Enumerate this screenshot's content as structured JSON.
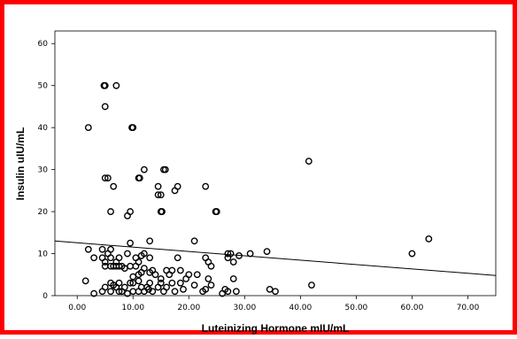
{
  "colors": {
    "border": "#ff0000",
    "point": "#000000",
    "fit_line": "#000000"
  },
  "chart_data": {
    "type": "scatter",
    "title": "",
    "xlabel": "Luteinizing Hormone mIU/mL",
    "ylabel": "Insulin uIU/mL",
    "xlim": [
      -4,
      75
    ],
    "ylim": [
      0,
      63
    ],
    "x_ticks": [
      0,
      10,
      20,
      30,
      40,
      50,
      60,
      70
    ],
    "x_tick_labels": [
      "0.00",
      "10.00",
      "20.00",
      "30.00",
      "40.00",
      "50.00",
      "60.00",
      "70.00"
    ],
    "y_ticks": [
      0,
      10,
      20,
      30,
      40,
      50,
      60
    ],
    "y_tick_labels": [
      "0",
      "10",
      "20",
      "30",
      "40",
      "50",
      "60"
    ],
    "grid": false,
    "fit_line": {
      "x": [
        -4,
        75
      ],
      "y": [
        13.0,
        4.8
      ]
    },
    "points": [
      [
        2.0,
        40.0
      ],
      [
        4.8,
        50.0
      ],
      [
        5.0,
        50.0
      ],
      [
        7.0,
        50.0
      ],
      [
        5.0,
        45.0
      ],
      [
        10.0,
        40.0
      ],
      [
        9.8,
        40.0
      ],
      [
        41.5,
        32.0
      ],
      [
        12.0,
        30.0
      ],
      [
        15.5,
        30.0
      ],
      [
        15.8,
        30.0
      ],
      [
        5.0,
        28.0
      ],
      [
        5.5,
        28.0
      ],
      [
        11.0,
        28.0
      ],
      [
        11.2,
        28.0
      ],
      [
        6.5,
        26.0
      ],
      [
        14.5,
        26.0
      ],
      [
        18.0,
        26.0
      ],
      [
        23.0,
        26.0
      ],
      [
        17.5,
        25.0
      ],
      [
        14.5,
        24.0
      ],
      [
        15.0,
        24.0
      ],
      [
        9.5,
        20.0
      ],
      [
        6.0,
        20.0
      ],
      [
        15.0,
        20.0
      ],
      [
        15.2,
        20.0
      ],
      [
        24.8,
        20.0
      ],
      [
        25.0,
        20.0
      ],
      [
        9.0,
        19.0
      ],
      [
        13.0,
        13.0
      ],
      [
        21.0,
        13.0
      ],
      [
        63.0,
        13.5
      ],
      [
        9.5,
        12.5
      ],
      [
        2.0,
        11.0
      ],
      [
        4.5,
        11.0
      ],
      [
        6.0,
        11.0
      ],
      [
        5.5,
        10.0
      ],
      [
        9.0,
        10.0
      ],
      [
        12.0,
        10.0
      ],
      [
        27.0,
        10.0
      ],
      [
        27.5,
        10.0
      ],
      [
        31.0,
        10.0
      ],
      [
        34.0,
        10.5
      ],
      [
        60.0,
        10.0
      ],
      [
        3.0,
        9.0
      ],
      [
        4.5,
        9.0
      ],
      [
        6.0,
        9.0
      ],
      [
        7.5,
        9.0
      ],
      [
        10.5,
        9.0
      ],
      [
        11.5,
        9.5
      ],
      [
        13.0,
        9.0
      ],
      [
        18.0,
        9.0
      ],
      [
        23.0,
        9.0
      ],
      [
        27.0,
        9.0
      ],
      [
        29.0,
        9.5
      ],
      [
        5.0,
        8.0
      ],
      [
        7.0,
        8.0
      ],
      [
        11.0,
        8.0
      ],
      [
        23.5,
        8.0
      ],
      [
        28.0,
        8.0
      ],
      [
        5.0,
        7.0
      ],
      [
        6.0,
        7.0
      ],
      [
        6.5,
        7.0
      ],
      [
        7.0,
        7.0
      ],
      [
        7.5,
        7.0
      ],
      [
        8.0,
        7.0
      ],
      [
        8.5,
        6.5
      ],
      [
        9.5,
        7.0
      ],
      [
        10.5,
        7.0
      ],
      [
        12.0,
        6.5
      ],
      [
        13.5,
        6.0
      ],
      [
        16.0,
        6.0
      ],
      [
        17.0,
        6.0
      ],
      [
        18.5,
        6.0
      ],
      [
        24.0,
        7.0
      ],
      [
        13.0,
        5.5
      ],
      [
        11.0,
        5.0
      ],
      [
        11.5,
        5.5
      ],
      [
        14.0,
        5.0
      ],
      [
        16.5,
        5.0
      ],
      [
        20.0,
        5.0
      ],
      [
        21.5,
        5.0
      ],
      [
        10.0,
        4.5
      ],
      [
        15.0,
        4.0
      ],
      [
        19.5,
        4.0
      ],
      [
        23.5,
        4.0
      ],
      [
        28.0,
        4.0
      ],
      [
        6.0,
        3.0
      ],
      [
        6.5,
        2.5
      ],
      [
        7.5,
        3.0
      ],
      [
        9.5,
        3.0
      ],
      [
        10.0,
        3.0
      ],
      [
        11.0,
        3.5
      ],
      [
        13.0,
        3.0
      ],
      [
        15.0,
        3.0
      ],
      [
        17.0,
        3.0
      ],
      [
        18.5,
        3.0
      ],
      [
        21.0,
        2.5
      ],
      [
        24.0,
        2.5
      ],
      [
        1.5,
        3.5
      ],
      [
        5.0,
        2.0
      ],
      [
        7.0,
        2.0
      ],
      [
        8.5,
        2.0
      ],
      [
        11.5,
        2.0
      ],
      [
        12.5,
        2.0
      ],
      [
        12.8,
        1.5
      ],
      [
        14.5,
        2.0
      ],
      [
        16.0,
        2.0
      ],
      [
        19.0,
        1.5
      ],
      [
        23.0,
        1.5
      ],
      [
        26.5,
        1.5
      ],
      [
        34.5,
        1.5
      ],
      [
        35.5,
        1.0
      ],
      [
        42.0,
        2.5
      ],
      [
        4.5,
        1.0
      ],
      [
        6.0,
        1.0
      ],
      [
        7.5,
        1.0
      ],
      [
        8.0,
        1.0
      ],
      [
        10.0,
        1.0
      ],
      [
        11.0,
        1.0
      ],
      [
        12.0,
        1.0
      ],
      [
        13.5,
        1.0
      ],
      [
        15.5,
        1.0
      ],
      [
        17.5,
        1.0
      ],
      [
        22.5,
        1.0
      ],
      [
        27.0,
        1.0
      ],
      [
        28.5,
        1.0
      ],
      [
        3.0,
        0.5
      ],
      [
        9.0,
        0.5
      ],
      [
        26.0,
        0.5
      ]
    ]
  }
}
